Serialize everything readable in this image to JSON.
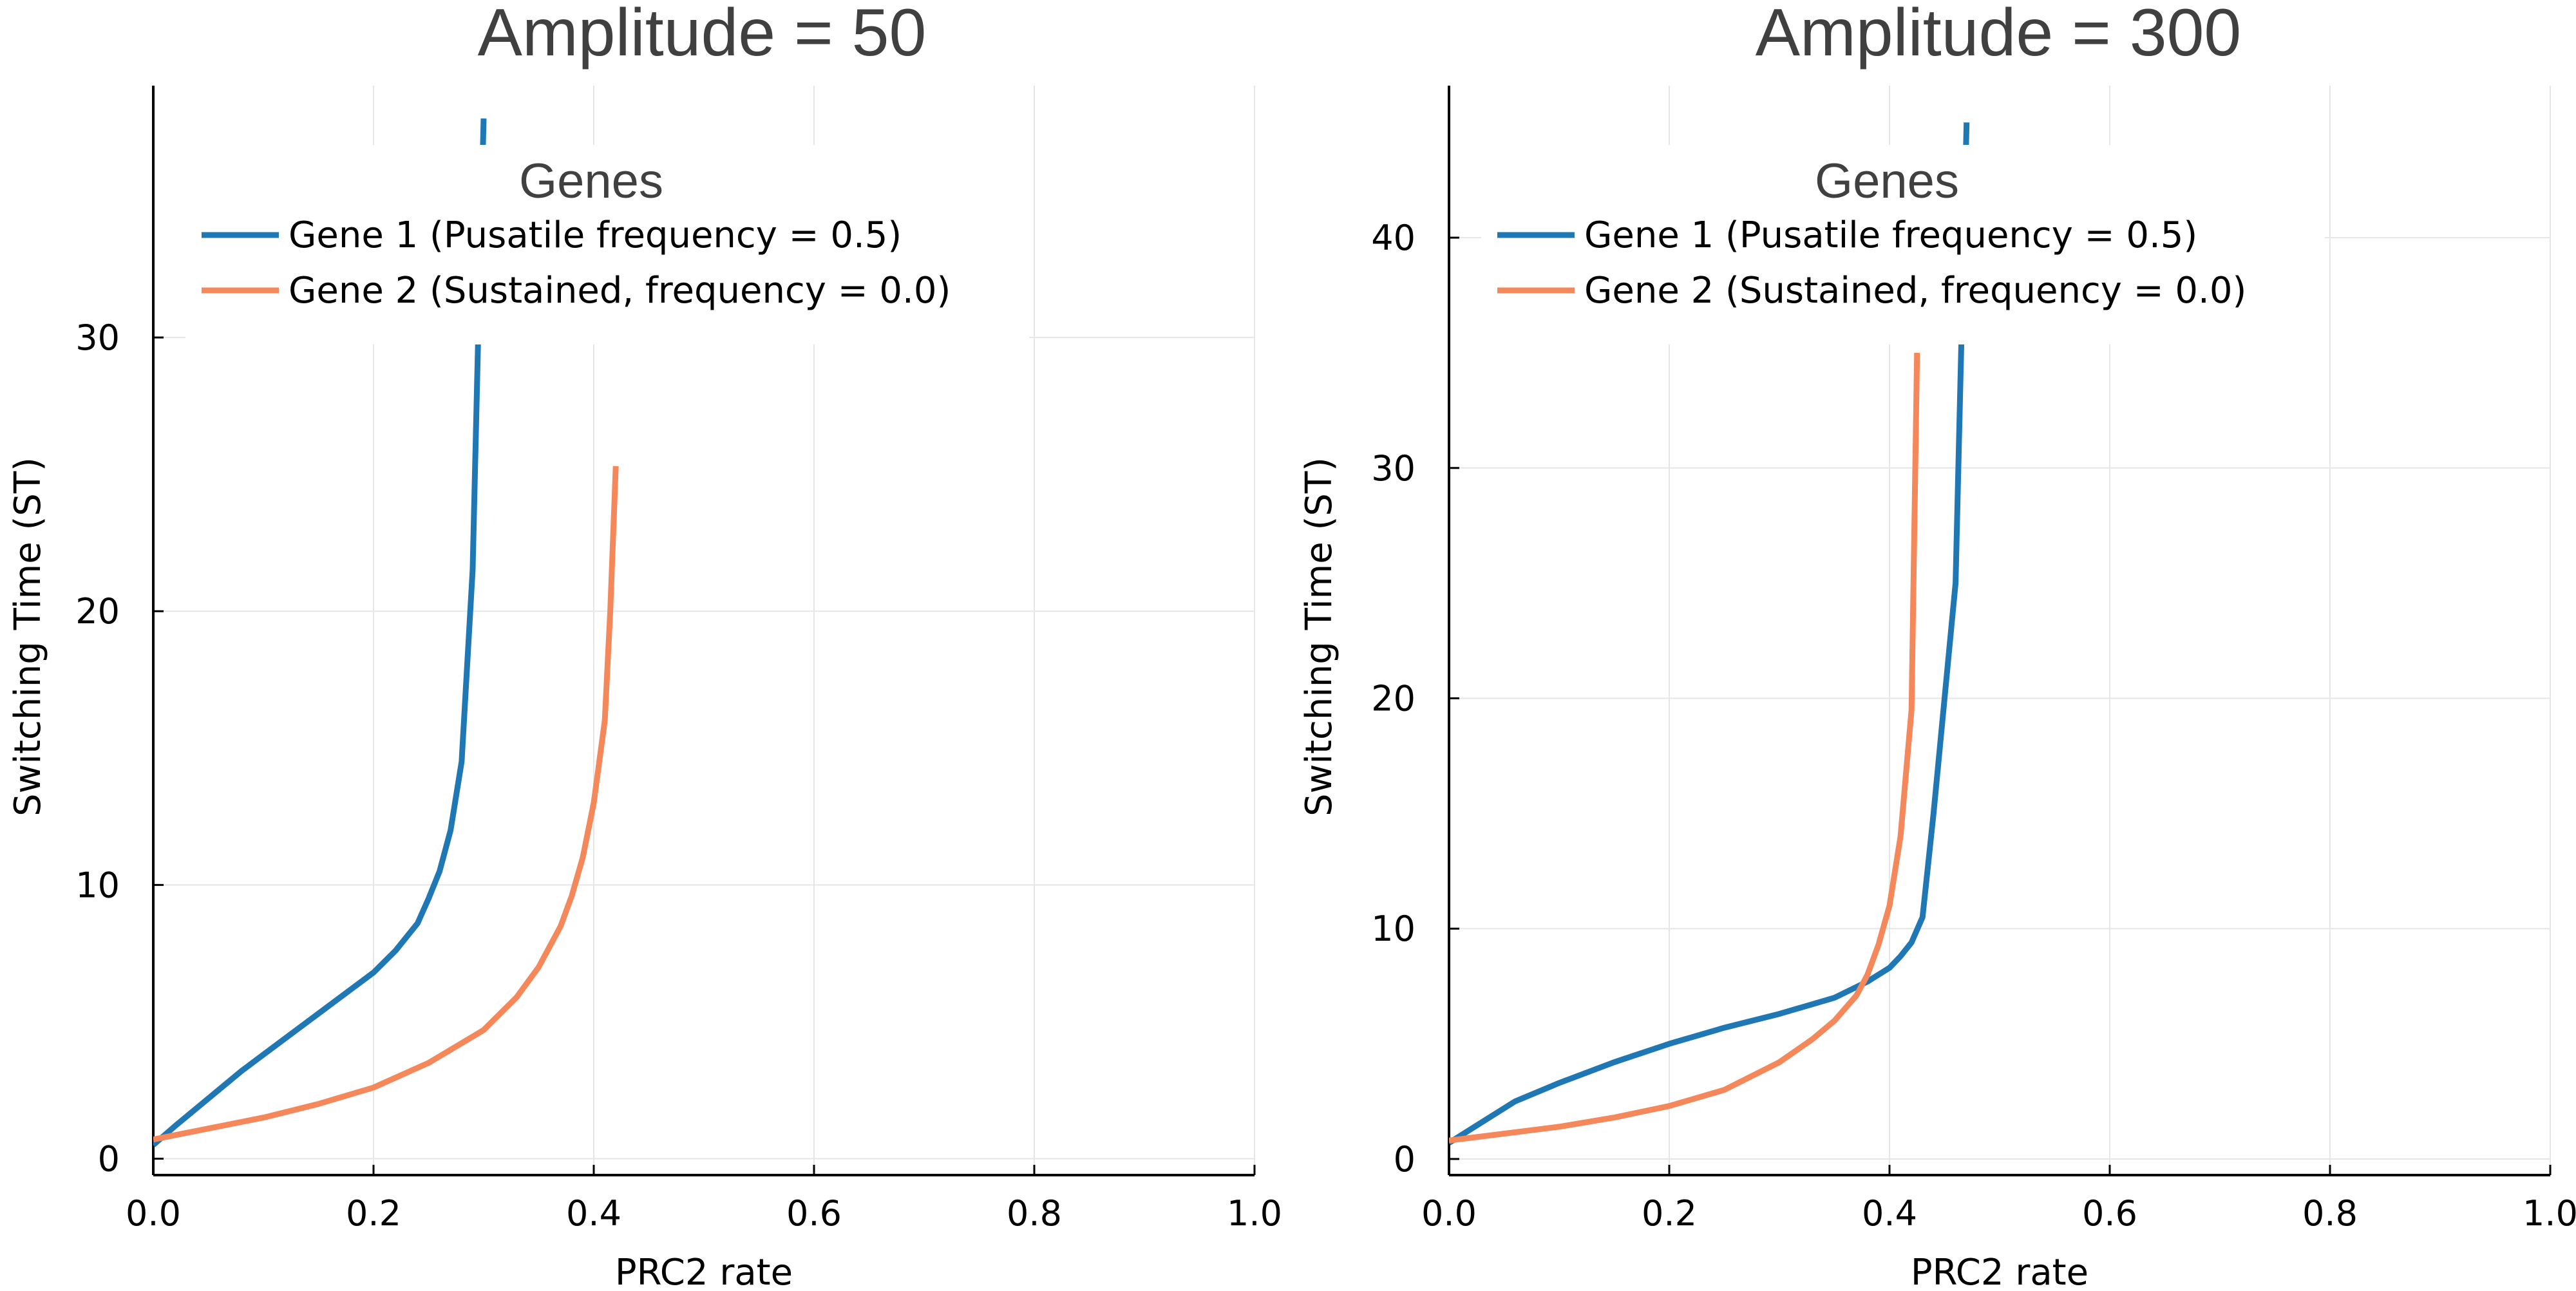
{
  "chart_data": [
    {
      "type": "line",
      "title": "Amplitude = 50",
      "xlabel": "PRC2 rate",
      "ylabel": "Switching Time (ST)",
      "xlim": [
        0,
        1
      ],
      "ylim": [
        -0.6,
        39.2
      ],
      "xticks": [
        0.0,
        0.2,
        0.4,
        0.6,
        0.8,
        1.0
      ],
      "xtick_labels": [
        "0.0",
        "0.2",
        "0.4",
        "0.6",
        "0.8",
        "1.0"
      ],
      "yticks": [
        0,
        10,
        20,
        30
      ],
      "ytick_labels": [
        "0",
        "10",
        "20",
        "30"
      ],
      "grid": true,
      "legend": {
        "title": "Genes",
        "position": "top-left"
      },
      "series": [
        {
          "name": "Gene 1 (Pusatile frequency = 0.5)",
          "color": "#1f77b4",
          "x": [
            0,
            0.02,
            0.05,
            0.08,
            0.1,
            0.12,
            0.14,
            0.16,
            0.18,
            0.2,
            0.22,
            0.24,
            0.25,
            0.26,
            0.27,
            0.28,
            0.29,
            0.295,
            0.3
          ],
          "y": [
            0.5,
            1.2,
            2.2,
            3.2,
            3.8,
            4.4,
            5.0,
            5.6,
            6.2,
            6.8,
            7.6,
            8.6,
            9.5,
            10.5,
            12.0,
            14.5,
            21.5,
            30.0,
            38.0
          ]
        },
        {
          "name": "Gene 2 (Sustained, frequency = 0.0)",
          "color": "#f4885a",
          "x": [
            0,
            0.05,
            0.1,
            0.15,
            0.2,
            0.25,
            0.3,
            0.33,
            0.35,
            0.37,
            0.38,
            0.39,
            0.4,
            0.41,
            0.415,
            0.42
          ],
          "y": [
            0.7,
            1.1,
            1.5,
            2.0,
            2.6,
            3.5,
            4.7,
            5.9,
            7.0,
            8.5,
            9.6,
            11.0,
            13.0,
            16.0,
            20.0,
            25.3
          ]
        }
      ]
    },
    {
      "type": "line",
      "title": "Amplitude = 300",
      "xlabel": "PRC2 rate",
      "ylabel": "Switching Time (ST)",
      "xlim": [
        0,
        1
      ],
      "ylim": [
        -0.7,
        46.6
      ],
      "xticks": [
        0.0,
        0.2,
        0.4,
        0.6,
        0.8,
        1.0
      ],
      "xtick_labels": [
        "0.0",
        "0.2",
        "0.4",
        "0.6",
        "0.8",
        "1.0"
      ],
      "yticks": [
        0,
        10,
        20,
        30,
        40
      ],
      "ytick_labels": [
        "0",
        "10",
        "20",
        "30",
        "40"
      ],
      "grid": true,
      "legend": {
        "title": "Genes",
        "position": "top-left"
      },
      "series": [
        {
          "name": "Gene 1 (Pusatile frequency = 0.5)",
          "color": "#1f77b4",
          "x": [
            0,
            0.03,
            0.06,
            0.1,
            0.15,
            0.2,
            0.25,
            0.3,
            0.35,
            0.38,
            0.4,
            0.41,
            0.42,
            0.43,
            0.44,
            0.45,
            0.46,
            0.465,
            0.47
          ],
          "y": [
            0.7,
            1.6,
            2.5,
            3.3,
            4.2,
            5.0,
            5.7,
            6.3,
            7.0,
            7.7,
            8.3,
            8.8,
            9.4,
            10.5,
            15.0,
            20.0,
            25.0,
            35.0,
            45.0
          ]
        },
        {
          "name": "Gene 2 (Sustained, frequency = 0.0)",
          "color": "#f4885a",
          "x": [
            0,
            0.05,
            0.1,
            0.15,
            0.2,
            0.25,
            0.3,
            0.33,
            0.35,
            0.37,
            0.38,
            0.39,
            0.4,
            0.41,
            0.42,
            0.425
          ],
          "y": [
            0.8,
            1.1,
            1.4,
            1.8,
            2.3,
            3.0,
            4.2,
            5.2,
            6.0,
            7.1,
            8.0,
            9.3,
            11.0,
            14.0,
            19.5,
            35.0
          ]
        }
      ]
    }
  ]
}
